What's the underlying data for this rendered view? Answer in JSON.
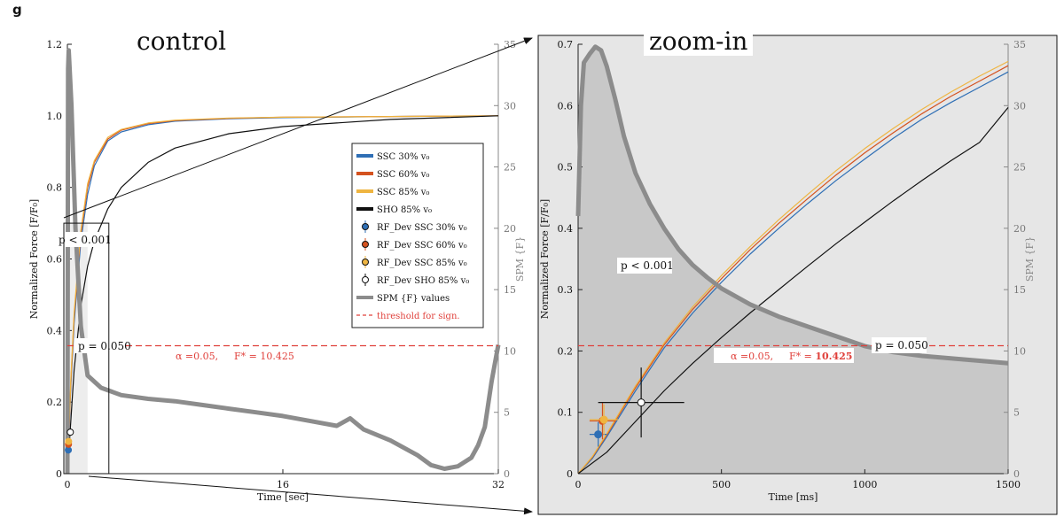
{
  "figure_label": "g",
  "chart_data": [
    {
      "type": "line",
      "title": "control",
      "xlabel": "Time [sec]",
      "ylabel": "Normalized Force [F/F₀]",
      "y2label": "SPM {F}",
      "xlim": [
        0,
        32
      ],
      "ylim": [
        0,
        1.2
      ],
      "y2lim": [
        0,
        35
      ],
      "xticks": [
        0,
        16,
        32
      ],
      "yticks": [
        0,
        0.2,
        0.4,
        0.6,
        0.8,
        1.0,
        1.2
      ],
      "ytick_labels": [
        "0",
        "0.2",
        "0.4",
        "0.6",
        "0.8",
        "1.0",
        "1.2"
      ],
      "y2ticks": [
        0,
        5,
        10,
        15,
        20,
        25,
        30,
        35
      ],
      "grid": false,
      "legend_position": "right-center",
      "legend": [
        {
          "label": "SSC 30% v₀",
          "style": "line",
          "color": "#2f6fb5"
        },
        {
          "label": "SSC 60% v₀",
          "style": "line",
          "color": "#d4521f"
        },
        {
          "label": "SSC 85% v₀",
          "style": "line",
          "color": "#efb541"
        },
        {
          "label": "SHO 85% v₀",
          "style": "line",
          "color": "#111111"
        },
        {
          "label": "RF_Dev SSC 30% v₀",
          "style": "errorbar",
          "color": "#2f6fb5"
        },
        {
          "label": "RF_Dev SSC 60% v₀",
          "style": "errorbar",
          "color": "#d4521f"
        },
        {
          "label": "RF_Dev SSC 85% v₀",
          "style": "errorbar",
          "color": "#efb541"
        },
        {
          "label": "RF_Dev SHO 85% v₀",
          "style": "errorbar",
          "color": "#111111"
        },
        {
          "label": "SPM {F} values",
          "style": "thickline",
          "color": "#8c8c8c"
        },
        {
          "label": "threshold for sign.",
          "style": "dashed",
          "color": "#e0403b"
        }
      ],
      "series": [
        {
          "name": "SSC 30% v₀",
          "color": "#2f6fb5",
          "x": [
            0,
            0.25,
            0.5,
            1,
            1.5,
            2,
            3,
            4,
            6,
            8,
            12,
            16,
            24,
            32
          ],
          "y": [
            0,
            0.24,
            0.42,
            0.65,
            0.78,
            0.86,
            0.93,
            0.955,
            0.975,
            0.985,
            0.992,
            0.995,
            0.998,
            1.0
          ]
        },
        {
          "name": "SSC 60% v₀",
          "color": "#d4521f",
          "x": [
            0,
            0.25,
            0.5,
            1,
            1.5,
            2,
            3,
            4,
            6,
            8,
            12,
            16,
            24,
            32
          ],
          "y": [
            0,
            0.25,
            0.44,
            0.67,
            0.8,
            0.87,
            0.935,
            0.96,
            0.978,
            0.987,
            0.993,
            0.996,
            0.998,
            1.0
          ]
        },
        {
          "name": "SSC 85% v₀",
          "color": "#efb541",
          "x": [
            0,
            0.25,
            0.5,
            1,
            1.5,
            2,
            3,
            4,
            6,
            8,
            12,
            16,
            24,
            32
          ],
          "y": [
            0,
            0.26,
            0.45,
            0.68,
            0.81,
            0.875,
            0.94,
            0.962,
            0.98,
            0.988,
            0.994,
            0.996,
            0.998,
            1.0
          ]
        },
        {
          "name": "SHO 85% v₀",
          "color": "#111111",
          "x": [
            0,
            0.5,
            1,
            1.5,
            2,
            3,
            4,
            6,
            8,
            12,
            16,
            20,
            24,
            32
          ],
          "y": [
            0,
            0.29,
            0.47,
            0.58,
            0.65,
            0.74,
            0.8,
            0.87,
            0.91,
            0.95,
            0.97,
            0.98,
            0.99,
            1.0
          ]
        },
        {
          "name": "SPM {F} values",
          "axis": "y2",
          "color": "#8c8c8c",
          "x": [
            0,
            0.05,
            0.1,
            0.3,
            0.6,
            1.0,
            1.5,
            2.5,
            4,
            6,
            8,
            10,
            12,
            14,
            16,
            18,
            20,
            21,
            22,
            24,
            26,
            27,
            28,
            29,
            30,
            30.5,
            31,
            31.5,
            32
          ],
          "y": [
            0,
            33,
            34.5,
            30,
            20,
            12,
            8,
            7,
            6.4,
            6.1,
            5.9,
            5.6,
            5.3,
            5.0,
            4.7,
            4.3,
            3.9,
            4.5,
            3.6,
            2.7,
            1.5,
            0.7,
            0.4,
            0.6,
            1.3,
            2.3,
            3.8,
            7.5,
            10.5
          ]
        },
        {
          "name": "threshold for sign.",
          "axis": "y2",
          "color": "#e0403b",
          "x": [
            0,
            32
          ],
          "y": [
            10.425,
            10.425
          ]
        }
      ],
      "errorbars": [
        {
          "name": "RF_Dev SSC 30% v₀",
          "x": 0.07,
          "y": 0.066,
          "color": "#2f6fb5"
        },
        {
          "name": "RF_Dev SSC 60% v₀",
          "x": 0.08,
          "y": 0.082,
          "color": "#d4521f"
        },
        {
          "name": "RF_Dev SSC 85% v₀",
          "x": 0.09,
          "y": 0.09,
          "color": "#efb541"
        },
        {
          "name": "RF_Dev SHO 85% v₀",
          "x": 0.22,
          "y": 0.116,
          "color": "#111111"
        }
      ],
      "annotations": {
        "p_sig": "p < 0.001",
        "p_thr": "p = 0.050",
        "alpha_text": "α  =0.05,",
        "fstar_label": "F* = ",
        "fstar_value": "10.425"
      },
      "zoom_box": {
        "x": [
          0,
          1.5
        ],
        "y": [
          0,
          0.7
        ]
      }
    },
    {
      "type": "line",
      "title": "zoom-in",
      "xlabel": "Time [ms]",
      "ylabel": "Normalized Force [F/F₀]",
      "y2label": "SPM {F}",
      "xlim": [
        0,
        1500
      ],
      "ylim": [
        0,
        0.7
      ],
      "y2lim": [
        0,
        35
      ],
      "xticks": [
        0,
        500,
        1000,
        1500
      ],
      "yticks": [
        0,
        0.1,
        0.2,
        0.3,
        0.4,
        0.5,
        0.6,
        0.7
      ],
      "ytick_labels": [
        "0",
        "0.1",
        "0.2",
        "0.3",
        "0.4",
        "0.5",
        "0.6",
        "0.7"
      ],
      "y2ticks": [
        0,
        5,
        10,
        15,
        20,
        25,
        30,
        35
      ],
      "grid": false,
      "series": [
        {
          "name": "SSC 30% v₀",
          "color": "#2f6fb5",
          "x": [
            0,
            50,
            100,
            200,
            300,
            400,
            500,
            600,
            700,
            800,
            900,
            1000,
            1100,
            1200,
            1300,
            1400,
            1500
          ],
          "y": [
            0,
            0.025,
            0.06,
            0.135,
            0.205,
            0.262,
            0.312,
            0.358,
            0.4,
            0.44,
            0.478,
            0.513,
            0.547,
            0.578,
            0.605,
            0.63,
            0.655
          ]
        },
        {
          "name": "SSC 60% v₀",
          "color": "#d4521f",
          "x": [
            0,
            50,
            100,
            200,
            300,
            400,
            500,
            600,
            700,
            800,
            900,
            1000,
            1100,
            1200,
            1300,
            1400,
            1500
          ],
          "y": [
            0,
            0.027,
            0.063,
            0.14,
            0.21,
            0.268,
            0.318,
            0.365,
            0.408,
            0.448,
            0.487,
            0.523,
            0.556,
            0.587,
            0.615,
            0.64,
            0.665
          ]
        },
        {
          "name": "SSC 85% v₀",
          "color": "#efb541",
          "x": [
            0,
            50,
            100,
            200,
            300,
            400,
            500,
            600,
            700,
            800,
            900,
            1000,
            1100,
            1200,
            1300,
            1400,
            1500
          ],
          "y": [
            0,
            0.028,
            0.065,
            0.143,
            0.213,
            0.272,
            0.323,
            0.37,
            0.414,
            0.455,
            0.494,
            0.53,
            0.563,
            0.594,
            0.622,
            0.648,
            0.672
          ]
        },
        {
          "name": "SHO 85% v₀",
          "color": "#111111",
          "x": [
            0,
            100,
            200,
            300,
            400,
            500,
            600,
            700,
            800,
            900,
            1000,
            1100,
            1200,
            1300,
            1400,
            1500
          ],
          "y": [
            0,
            0.035,
            0.085,
            0.135,
            0.18,
            0.222,
            0.262,
            0.3,
            0.338,
            0.375,
            0.41,
            0.445,
            0.478,
            0.51,
            0.54,
            0.597
          ]
        },
        {
          "name": "SPM {F} values",
          "axis": "y2",
          "color": "#8c8c8c",
          "x": [
            0,
            10,
            20,
            40,
            60,
            80,
            100,
            130,
            160,
            200,
            250,
            300,
            350,
            400,
            450,
            500,
            600,
            700,
            800,
            900,
            1000,
            1100,
            1200,
            1300,
            1400,
            1500
          ],
          "y": [
            21,
            30,
            33.5,
            34.2,
            34.8,
            34.5,
            33.2,
            30.5,
            27.5,
            24.5,
            22,
            20,
            18.3,
            17,
            16,
            15.1,
            13.8,
            12.8,
            12,
            11.2,
            10.4,
            9.9,
            9.6,
            9.4,
            9.2,
            9.0
          ]
        },
        {
          "name": "threshold for sign.",
          "axis": "y2",
          "color": "#e0403b",
          "x": [
            0,
            1500
          ],
          "y": [
            10.425,
            10.425
          ]
        }
      ],
      "errorbars": [
        {
          "name": "RF_Dev SSC 30% v₀",
          "x": 70,
          "y": 0.064,
          "xerr": 30,
          "yerr": 0.02,
          "color": "#2f6fb5"
        },
        {
          "name": "RF_Dev SSC 60% v₀",
          "x": 85,
          "y": 0.086,
          "xerr": 45,
          "yerr": 0.03,
          "color": "#d4521f"
        },
        {
          "name": "RF_Dev SSC 85% v₀",
          "x": 90,
          "y": 0.088,
          "xerr": 50,
          "yerr": 0.025,
          "color": "#efb541"
        },
        {
          "name": "RF_Dev SHO 85% v₀",
          "x": 220,
          "y": 0.116,
          "xerr": 150,
          "yerr": 0.057,
          "color": "#111111"
        }
      ],
      "annotations": {
        "p_sig": "p < 0.001",
        "p_thr": "p = 0.050",
        "alpha_text": "α  =0.05,",
        "fstar_label": "F* = ",
        "fstar_value": "10.425"
      }
    }
  ]
}
